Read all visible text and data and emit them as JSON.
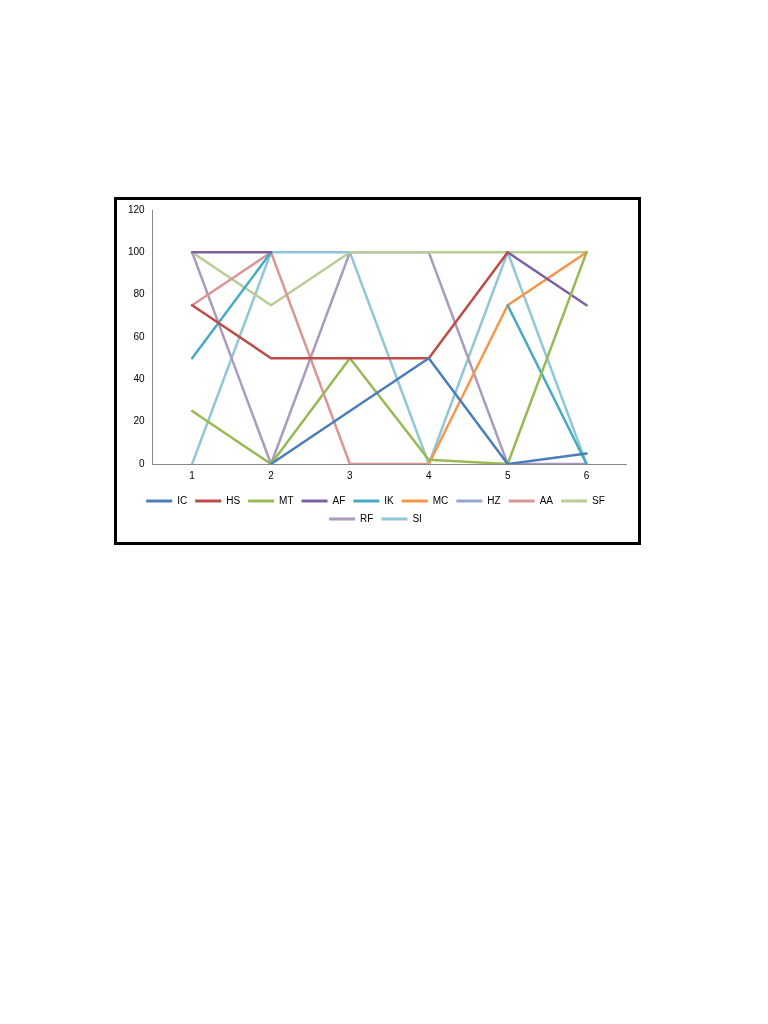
{
  "chart_data": {
    "type": "line",
    "categories": [
      "1",
      "2",
      "3",
      "4",
      "5",
      "6"
    ],
    "ylim": [
      0,
      120
    ],
    "yticks": [
      0,
      20,
      40,
      60,
      80,
      100,
      120
    ],
    "grid": false,
    "legend": "bottom",
    "marker": "none",
    "line_style": "solid",
    "series": [
      {
        "name": "IC",
        "color": "#4a7ebb",
        "values": [
          null,
          0,
          25,
          50,
          0,
          5
        ]
      },
      {
        "name": "HS",
        "color": "#be4b48",
        "values": [
          75,
          50,
          50,
          50,
          100,
          null
        ]
      },
      {
        "name": "MT",
        "color": "#98b954",
        "values": [
          25,
          0,
          50,
          2,
          0,
          100
        ]
      },
      {
        "name": "AF",
        "color": "#7d60a0",
        "values": [
          100,
          100,
          null,
          null,
          100,
          75
        ]
      },
      {
        "name": "IK",
        "color": "#46aac5",
        "values": [
          50,
          100,
          null,
          null,
          75,
          0
        ]
      },
      {
        "name": "MC",
        "color": "#f79646",
        "values": [
          null,
          null,
          null,
          0,
          75,
          100
        ]
      },
      {
        "name": "HZ",
        "color": "#92a9cf",
        "values": [
          null,
          null,
          null,
          null,
          null,
          null
        ]
      },
      {
        "name": "AA",
        "color": "#d99694",
        "values": [
          75,
          100,
          0,
          0,
          null,
          null
        ]
      },
      {
        "name": "SF",
        "color": "#b9cd96",
        "values": [
          100,
          75,
          100,
          100,
          100,
          100
        ]
      },
      {
        "name": "RF",
        "color": "#a99bbd",
        "values": [
          100,
          0,
          100,
          100,
          0,
          0
        ]
      },
      {
        "name": "SI",
        "color": "#8fc7d8",
        "values": [
          0,
          100,
          100,
          0,
          100,
          0
        ]
      }
    ]
  }
}
